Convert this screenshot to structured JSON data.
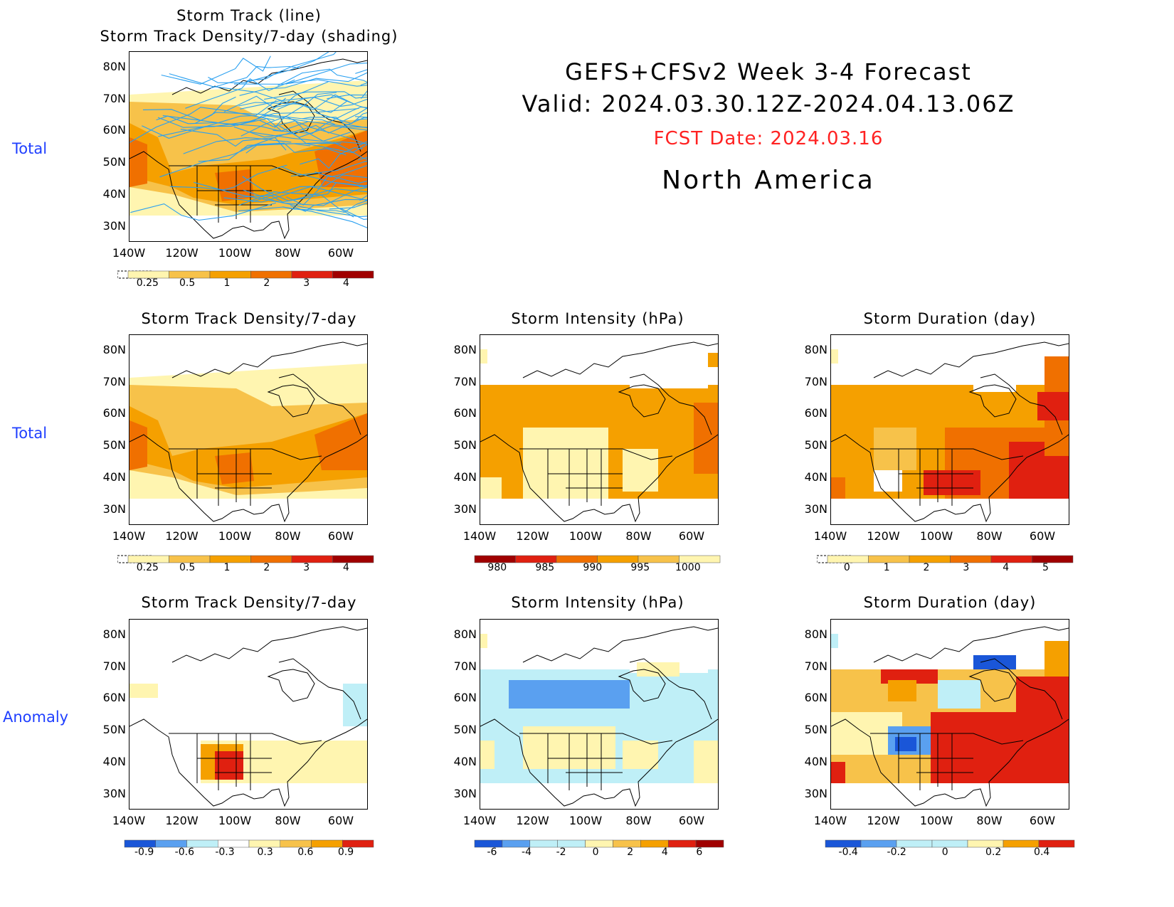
{
  "header": {
    "line1": "GEFS+CFSv2  Week  3-4  Forecast",
    "line2": "Valid:  2024.03.30.12Z-2024.04.13.06Z",
    "fcst_date": "FCST Date: 2024.03.16",
    "region": "North  America",
    "fcst_color": "#ff2222"
  },
  "row_labels": [
    "Total",
    "Total",
    "Anomaly"
  ],
  "lat_ticks": [
    "80N",
    "70N",
    "60N",
    "50N",
    "40N",
    "30N"
  ],
  "lon_ticks": [
    "140W",
    "120W",
    "100W",
    "80W",
    "60W"
  ],
  "panels": {
    "p0": {
      "title1": "Storm  Track  (line)",
      "title2": "Storm  Track  Density/7-day  (shading)",
      "cbar": [
        "0.25",
        "0.5",
        "1",
        "2",
        "3",
        "4"
      ]
    },
    "p1": {
      "title": "Storm  Track  Density/7-day",
      "cbar": [
        "0.25",
        "0.5",
        "1",
        "2",
        "3",
        "4"
      ]
    },
    "p2": {
      "title": "Storm  Intensity  (hPa)",
      "cbar": [
        "980",
        "985",
        "990",
        "995",
        "1000"
      ]
    },
    "p3": {
      "title": "Storm  Duration  (day)",
      "cbar": [
        "0",
        "1",
        "2",
        "3",
        "4",
        "5"
      ]
    },
    "p4": {
      "title": "Storm  Track  Density/7-day",
      "cbar": [
        "-0.9",
        "-0.6",
        "-0.3",
        "0.3",
        "0.6",
        "0.9"
      ]
    },
    "p5": {
      "title": "Storm  Intensity  (hPa)",
      "cbar": [
        "-6",
        "-4",
        "-2",
        "0",
        "2",
        "4",
        "6"
      ]
    },
    "p6": {
      "title": "Storm  Duration  (day)",
      "cbar": [
        "-0.4",
        "-0.2",
        "0",
        "0.2",
        "0.4"
      ]
    }
  },
  "colors": {
    "pale_yellow": "#fff5b0",
    "light_orange": "#f7c24a",
    "orange": "#f5a000",
    "dark_orange": "#f07000",
    "red": "#e02010",
    "dark_red": "#a00000",
    "light_blue": "#bfeff7",
    "blue": "#5aa0f0",
    "dark_blue": "#1a56d8",
    "track_blue": "#2aa0f0"
  }
}
